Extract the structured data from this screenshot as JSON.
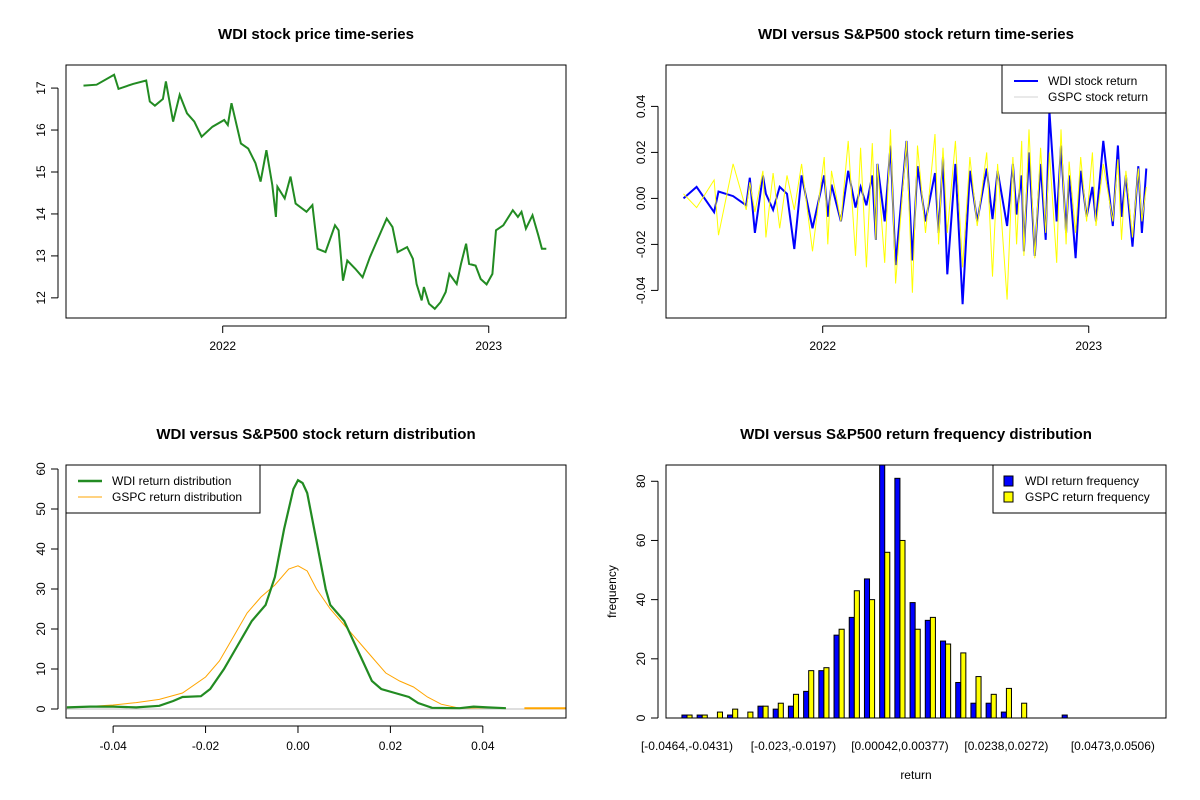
{
  "chart_data": [
    {
      "type": "line",
      "title": "WDI stock price time-series",
      "xlim": [
        "2021-05-31",
        "2023-04-17"
      ],
      "ylim": [
        11.52,
        17.55
      ],
      "x_ticks": [
        {
          "date": "2022-01-01",
          "label": "2022"
        },
        {
          "date": "2023-01-01",
          "label": "2023"
        }
      ],
      "y_ticks": [
        12,
        13,
        14,
        15,
        16,
        17
      ],
      "color": "#228B22",
      "x": [
        "2021-06-24",
        "2021-07-12",
        "2021-08-05",
        "2021-08-11",
        "2021-08-31",
        "2021-09-18",
        "2021-09-23",
        "2021-09-30",
        "2021-10-11",
        "2021-10-15",
        "2021-10-25",
        "2021-11-03",
        "2021-11-13",
        "2021-11-23",
        "2021-12-03",
        "2021-12-18",
        "2022-01-03",
        "2022-01-08",
        "2022-01-13",
        "2022-01-26",
        "2022-02-05",
        "2022-02-15",
        "2022-02-22",
        "2022-03-02",
        "2022-03-10",
        "2022-03-15",
        "2022-03-17",
        "2022-03-27",
        "2022-04-04",
        "2022-04-11",
        "2022-04-26",
        "2022-05-04",
        "2022-05-11",
        "2022-05-22",
        "2022-06-04",
        "2022-06-09",
        "2022-06-15",
        "2022-06-21",
        "2022-07-02",
        "2022-07-12",
        "2022-07-22",
        "2022-08-01",
        "2022-08-14",
        "2022-08-22",
        "2022-08-29",
        "2022-09-11",
        "2022-09-19",
        "2022-09-24",
        "2022-10-01",
        "2022-10-04",
        "2022-10-11",
        "2022-10-19",
        "2022-10-27",
        "2022-11-03",
        "2022-11-08",
        "2022-11-18",
        "2022-11-24",
        "2022-12-01",
        "2022-12-05",
        "2022-12-14",
        "2022-12-21",
        "2022-12-29",
        "2023-01-06",
        "2023-01-11",
        "2023-01-21",
        "2023-02-03",
        "2023-02-10",
        "2023-02-15",
        "2023-02-21",
        "2023-03-02",
        "2023-03-10",
        "2023-03-15",
        "2023-03-21"
      ],
      "y": [
        17.06,
        17.08,
        17.32,
        16.98,
        17.1,
        17.18,
        16.68,
        16.58,
        16.74,
        17.16,
        16.2,
        16.84,
        16.4,
        16.2,
        15.84,
        16.08,
        16.24,
        16.12,
        16.64,
        15.68,
        15.56,
        15.21,
        14.77,
        15.52,
        14.69,
        13.93,
        14.65,
        14.37,
        14.89,
        14.25,
        14.05,
        14.21,
        13.17,
        13.09,
        13.73,
        13.61,
        12.41,
        12.89,
        12.69,
        12.49,
        12.97,
        13.37,
        13.89,
        13.69,
        13.09,
        13.21,
        12.93,
        12.33,
        11.94,
        12.26,
        11.86,
        11.74,
        11.9,
        12.14,
        12.57,
        12.33,
        12.81,
        13.29,
        12.81,
        12.77,
        12.45,
        12.32,
        12.57,
        13.61,
        13.73,
        14.09,
        13.93,
        14.05,
        13.65,
        13.97,
        13.49,
        13.17,
        13.17
      ]
    },
    {
      "type": "line",
      "title": "WDI versus S&P500 stock return time-series",
      "xlim": [
        "2021-05-31",
        "2023-04-17"
      ],
      "ylim": [
        -0.052,
        0.058
      ],
      "x_ticks": [
        {
          "date": "2022-01-01",
          "label": "2022"
        },
        {
          "date": "2023-01-01",
          "label": "2023"
        }
      ],
      "y_ticks": [
        {
          "v": -0.04,
          "label": "-0.04"
        },
        {
          "v": -0.02,
          "label": "-0.02"
        },
        {
          "v": 0,
          "label": "0.00"
        },
        {
          "v": 0.02,
          "label": "0.02"
        },
        {
          "v": 0.04,
          "label": "0.04"
        }
      ],
      "legend_position": "top-right",
      "series": [
        {
          "name": "WDI stock return",
          "color": "#0000FF",
          "values": [
            0.0,
            0.005,
            -0.006,
            0.003,
            0.001,
            -0.003,
            0.009,
            -0.015,
            0.01,
            0.002,
            -0.005,
            0.005,
            0.002,
            -0.022,
            0.01,
            -0.013,
            0.01,
            -0.008,
            0.006,
            -0.01,
            0.012,
            -0.004,
            0.005,
            -0.003,
            0.01,
            -0.018,
            0.015,
            -0.01,
            0.023,
            -0.029,
            0.025,
            -0.027,
            0.014,
            -0.01,
            0.011,
            -0.015,
            0.018,
            -0.033,
            0.015,
            -0.046,
            0.012,
            -0.01,
            0.013,
            -0.009,
            0.012,
            -0.012,
            0.015,
            -0.007,
            0.01,
            -0.023,
            0.02,
            -0.025,
            0.015,
            -0.018,
            0.038,
            -0.01,
            0.023,
            -0.015,
            0.01,
            -0.026,
            0.012,
            -0.008,
            0.005,
            -0.01,
            0.025,
            -0.012,
            0.023,
            -0.008,
            0.01,
            -0.021,
            0.014,
            -0.015,
            0.013
          ]
        },
        {
          "name": "GSPC stock return",
          "color": "#FFFF00",
          "values": [
            0.002,
            -0.004,
            0.008,
            -0.016,
            0.015,
            -0.005,
            0.007,
            -0.006,
            0.012,
            -0.017,
            0.011,
            -0.013,
            0.01,
            -0.005,
            0.015,
            -0.023,
            0.018,
            -0.02,
            0.012,
            -0.01,
            0.025,
            -0.025,
            0.022,
            -0.03,
            0.024,
            -0.018,
            0.015,
            -0.028,
            0.03,
            -0.037,
            0.025,
            -0.041,
            0.023,
            -0.015,
            0.028,
            -0.02,
            0.022,
            -0.015,
            0.025,
            -0.03,
            0.018,
            -0.012,
            0.02,
            -0.034,
            0.015,
            -0.044,
            0.018,
            -0.02,
            0.025,
            -0.025,
            0.03,
            -0.026,
            0.022,
            -0.015,
            0.02,
            -0.028,
            0.03,
            -0.02,
            0.016,
            -0.015,
            0.018,
            -0.01,
            0.02,
            -0.012,
            0.015,
            -0.01,
            0.017,
            -0.018,
            0.012,
            -0.017,
            0.013,
            -0.01,
            0.005
          ]
        }
      ],
      "x_from_chart": 0
    },
    {
      "type": "line",
      "title": "WDI versus S&P500 stock return distribution",
      "xlim": [
        -0.0502,
        0.058
      ],
      "ylim": [
        -2.25,
        61
      ],
      "x_ticks": [
        {
          "v": -0.04,
          "label": "-0.04"
        },
        {
          "v": -0.02,
          "label": "-0.02"
        },
        {
          "v": 0,
          "label": "0.00"
        },
        {
          "v": 0.02,
          "label": "0.02"
        },
        {
          "v": 0.04,
          "label": "0.04"
        }
      ],
      "y_ticks": [
        0,
        10,
        20,
        30,
        40,
        50,
        60
      ],
      "legend_position": "top-left",
      "baseline_color": "#BEBEBE",
      "series": [
        {
          "name": "WDI return distribution",
          "color": "#228B22",
          "x": [
            -0.05,
            -0.045,
            -0.04,
            -0.035,
            -0.03,
            -0.027,
            -0.025,
            -0.021,
            -0.019,
            -0.016,
            -0.013,
            -0.01,
            -0.007,
            -0.005,
            -0.003,
            -0.001,
            0,
            0.001,
            0.002,
            0.004,
            0.006,
            0.007,
            0.01,
            0.012,
            0.014,
            0.016,
            0.018,
            0.021,
            0.024,
            0.026,
            0.029,
            0.035,
            0.038,
            0.041,
            0.045
          ],
          "y": [
            0.4,
            0.6,
            0.6,
            0.4,
            0.8,
            2,
            3,
            3.2,
            5,
            10,
            16,
            22,
            26,
            33,
            45,
            55,
            57.2,
            56.5,
            54,
            42,
            30,
            26,
            22,
            17,
            12,
            7,
            5,
            4,
            3,
            1.5,
            0.3,
            0.2,
            0.6,
            0.4,
            0.2
          ]
        },
        {
          "name": "GSPC return distribution",
          "color": "#FFA500",
          "x": [
            -0.05,
            -0.04,
            -0.035,
            -0.03,
            -0.025,
            -0.02,
            -0.017,
            -0.014,
            -0.011,
            -0.008,
            -0.005,
            -0.002,
            0,
            0.002,
            0.004,
            0.007,
            0.01,
            0.013,
            0.016,
            0.019,
            0.022,
            0.025,
            0.028,
            0.031,
            0.035,
            0.04,
            0.045
          ],
          "y": [
            0.3,
            1.0,
            1.6,
            2.4,
            4,
            8,
            12,
            18,
            24,
            28,
            31,
            35,
            35.8,
            34.5,
            30,
            25,
            21,
            17,
            13,
            9,
            7,
            5.5,
            3,
            1.2,
            0.2,
            0.3,
            0.2
          ],
          "tail_x": [
            0.049,
            0.058
          ],
          "tail_y": [
            0.2,
            0.2
          ]
        }
      ]
    },
    {
      "type": "bar",
      "title": "WDI versus S&P500 return frequency distribution",
      "xlabel": "return",
      "ylabel": "frequency",
      "ylim": [
        0,
        85.5
      ],
      "y_ticks": [
        0,
        20,
        40,
        60,
        80
      ],
      "legend_position": "top-right",
      "tick_labels": [
        {
          "bin": 1,
          "label": "[-0.0464,-0.0431)"
        },
        {
          "bin": 8,
          "label": "[-0.023,-0.0197)"
        },
        {
          "bin": 15,
          "label": "[0.00042,0.00377)"
        },
        {
          "bin": 22,
          "label": "[0.0238,0.0272)"
        },
        {
          "bin": 29,
          "label": "[0.0473,0.0506)"
        }
      ],
      "series": [
        {
          "name": "WDI return frequency",
          "color": "#0000FF",
          "values": [
            1,
            1,
            0,
            1,
            0,
            4,
            3,
            4,
            9,
            16,
            28,
            34,
            47,
            86,
            81,
            39,
            33,
            26,
            12,
            5,
            5,
            2,
            0,
            0,
            0,
            1,
            0,
            0,
            0,
            0
          ]
        },
        {
          "name": "GSPC return frequency",
          "color": "#FFFF00",
          "values": [
            1,
            1,
            2,
            3,
            2,
            4,
            5,
            8,
            16,
            17,
            30,
            43,
            40,
            56,
            60,
            30,
            34,
            25,
            22,
            14,
            8,
            10,
            5,
            0,
            0,
            0,
            0,
            0,
            0,
            0
          ]
        }
      ]
    }
  ]
}
